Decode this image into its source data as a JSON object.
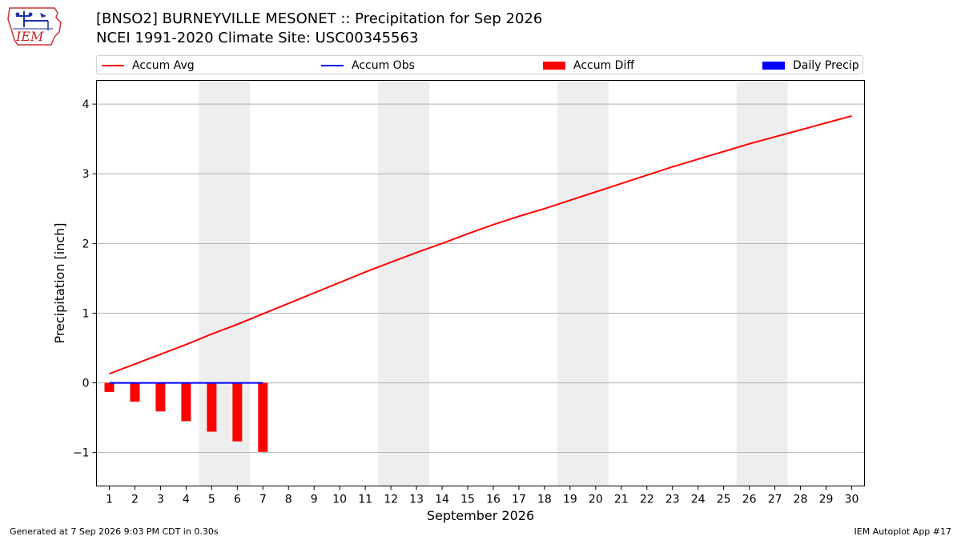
{
  "header": {
    "title_line1": "[BNSO2] BURNEYVILLE MESONET :: Precipitation for Sep 2026",
    "title_line2": "NCEI 1991-2020 Climate Site: USC00345563",
    "logo_text": "IEM"
  },
  "legend": {
    "placement": "top (above plot, full width)",
    "items": [
      {
        "label": "Accum Avg",
        "kind": "line",
        "color": "#ff0000"
      },
      {
        "label": "Accum Obs",
        "kind": "line",
        "color": "#0000ff"
      },
      {
        "label": "Accum Diff",
        "kind": "rect",
        "color": "#ff0000"
      },
      {
        "label": "Daily Precip",
        "kind": "rect",
        "color": "#0000ff"
      }
    ]
  },
  "footer": {
    "left": "Generated at 7 Sep 2026 9:03 PM CDT in 0.30s",
    "right": "IEM Autoplot App #17"
  },
  "chart_data": {
    "type": "line",
    "title": "[BNSO2] BURNEYVILLE MESONET :: Precipitation for Sep 2026",
    "subtitle": "NCEI 1991-2020 Climate Site: USC00345563",
    "xlabel": "September 2026",
    "ylabel": "Precipitation [inch]",
    "x": [
      1,
      2,
      3,
      4,
      5,
      6,
      7,
      8,
      9,
      10,
      11,
      12,
      13,
      14,
      15,
      16,
      17,
      18,
      19,
      20,
      21,
      22,
      23,
      24,
      25,
      26,
      27,
      28,
      29,
      30
    ],
    "xlim": [
      0.5,
      30.5
    ],
    "ylim": [
      -1.48,
      4.34
    ],
    "yticks": [
      -1,
      0,
      1,
      2,
      3,
      4
    ],
    "ytick_labels": [
      "−1",
      "0",
      "1",
      "2",
      "3",
      "4"
    ],
    "grid": "horizontal",
    "weekend_shading": [
      [
        4.5,
        6.5
      ],
      [
        11.5,
        13.5
      ],
      [
        18.5,
        20.5
      ],
      [
        25.5,
        27.5
      ]
    ],
    "shade_color": "#eeeeee",
    "series": [
      {
        "name": "Accum Avg",
        "kind": "line",
        "color": "#ff0000",
        "x": [
          1,
          2,
          3,
          4,
          5,
          6,
          7,
          8,
          9,
          10,
          11,
          12,
          13,
          14,
          15,
          16,
          17,
          18,
          19,
          20,
          21,
          22,
          23,
          24,
          25,
          26,
          27,
          28,
          29,
          30
        ],
        "values": [
          0.13,
          0.27,
          0.41,
          0.55,
          0.7,
          0.84,
          0.99,
          1.14,
          1.29,
          1.44,
          1.59,
          1.73,
          1.87,
          2.0,
          2.14,
          2.27,
          2.39,
          2.5,
          2.62,
          2.74,
          2.86,
          2.98,
          3.1,
          3.21,
          3.32,
          3.43,
          3.53,
          3.63,
          3.73,
          3.83
        ]
      },
      {
        "name": "Accum Obs",
        "kind": "line",
        "color": "#0000ff",
        "x": [
          1,
          2,
          3,
          4,
          5,
          6,
          7
        ],
        "values": [
          0,
          0,
          0,
          0,
          0,
          0,
          0
        ]
      },
      {
        "name": "Accum Diff",
        "kind": "bar",
        "color": "#ff0000",
        "x": [
          1,
          2,
          3,
          4,
          5,
          6,
          7
        ],
        "values": [
          -0.13,
          -0.27,
          -0.41,
          -0.55,
          -0.7,
          -0.84,
          -0.99
        ]
      },
      {
        "name": "Daily Precip",
        "kind": "bar",
        "color": "#0000ff",
        "x": [
          1,
          2,
          3,
          4,
          5,
          6,
          7
        ],
        "values": [
          0,
          0,
          0,
          0,
          0,
          0,
          0
        ]
      }
    ]
  }
}
